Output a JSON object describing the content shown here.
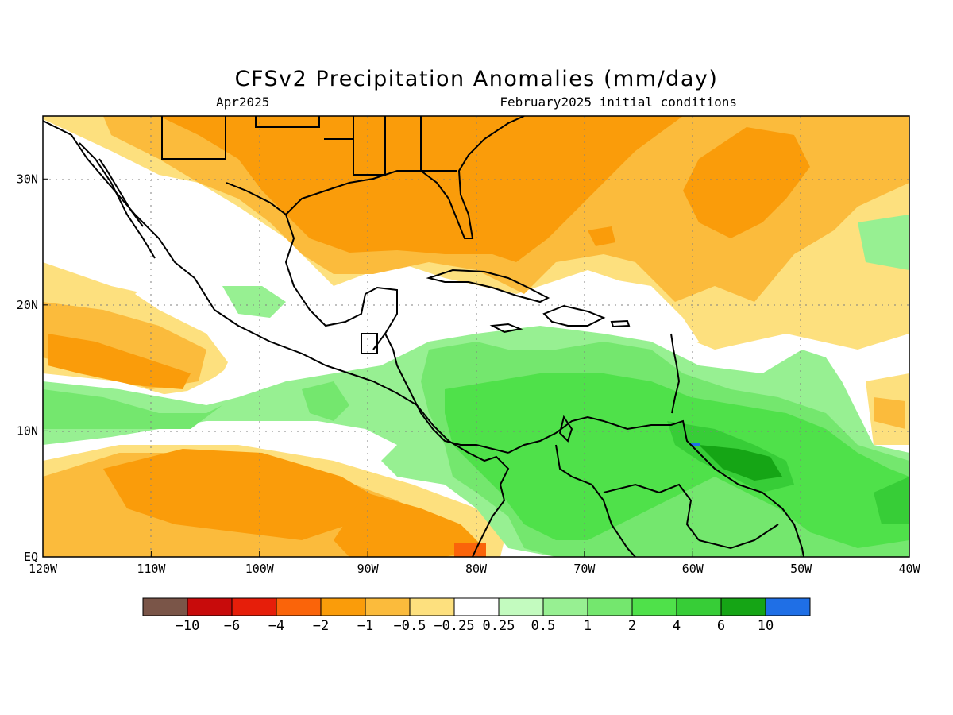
{
  "title": "CFSv2 Precipitation Anomalies (mm/day)",
  "valid_month": "Apr2025",
  "initial_conditions": "February2025 initial conditions",
  "map": {
    "lon_labels": [
      "120W",
      "110W",
      "100W",
      "90W",
      "80W",
      "70W",
      "60W",
      "50W",
      "40W"
    ],
    "lat_labels": [
      "EQ",
      "10N",
      "20N",
      "30N"
    ],
    "lon_range": [
      -120,
      -40
    ],
    "lat_range": [
      0,
      35
    ],
    "grid": "dotted"
  },
  "colorbar": {
    "labels": [
      "−10",
      "−6",
      "−4",
      "−2",
      "−1",
      "−0.5",
      "−0.25",
      "0.25",
      "0.5",
      "1",
      "2",
      "4",
      "6",
      "10"
    ],
    "colors": [
      "#7a5548",
      "#c80b0b",
      "#e61e0a",
      "#fa640a",
      "#fa9c0a",
      "#fbbb3c",
      "#fde07e",
      "#ffffff",
      "#c3fbbf",
      "#97f092",
      "#74e76e",
      "#4fe14a",
      "#37cd37",
      "#15a515",
      "#1f6fe6"
    ]
  },
  "colors": {
    "ocean_dry_light": "#fde07e",
    "ocean_dry": "#fbbb3c",
    "ocean_dry_strong": "#fa9c0a",
    "wet_light": "#97f092",
    "wet": "#74e76e",
    "wet_strong": "#4fe14a",
    "wet_stronger": "#37cd37",
    "wet_max": "#15a515"
  }
}
